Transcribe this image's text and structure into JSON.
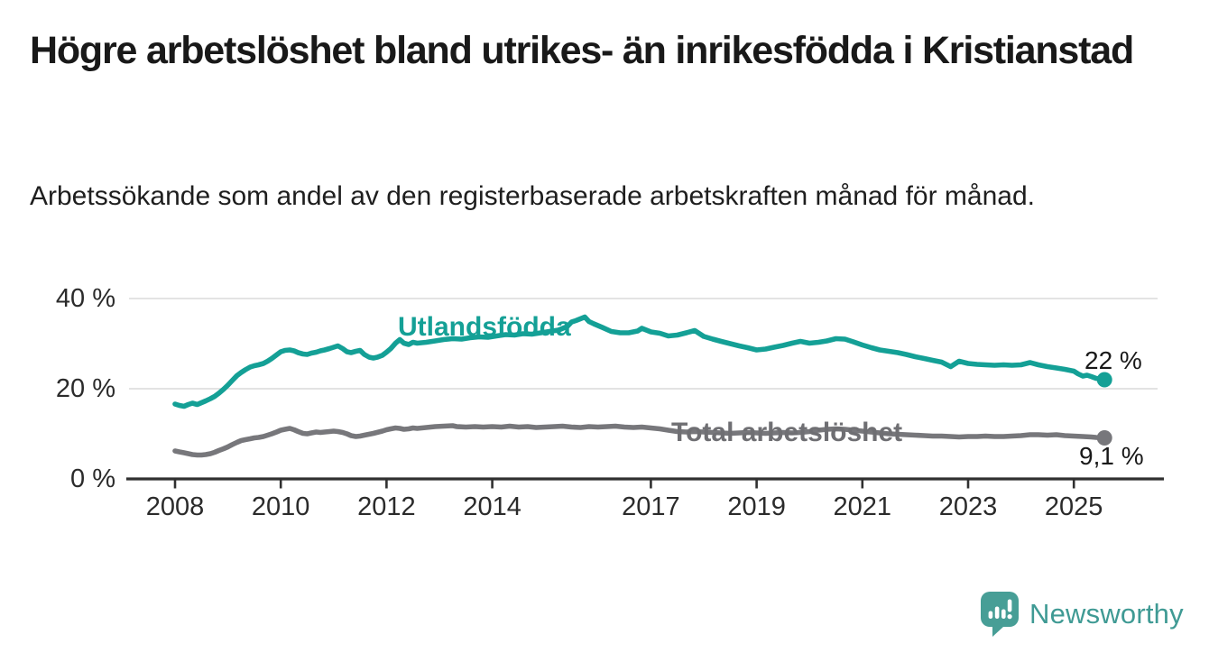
{
  "header": {
    "title": "Högre arbetslöshet bland utrikes- än inrikesfödda i Kristianstad",
    "subtitle": "Arbetssökande som andel av den registerbaserade arbetskraften månad för månad."
  },
  "branding": {
    "logo_text": "Newsworthy",
    "logo_icon": "newsworthy-speech-bubble-bar-chart-icon",
    "logo_color": "#479e96"
  },
  "chart_data": {
    "type": "line",
    "title": "Högre arbetslöshet bland utrikes- än inrikesfödda i Kristianstad",
    "subtitle": "Arbetssökande som andel av den registerbaserade arbetskraften månad för månad.",
    "xlabel": "",
    "ylabel": "",
    "unit": "%",
    "ylim": [
      0,
      40
    ],
    "grid": "horizontal",
    "legend_position": "inline-labels",
    "y_ticks": [
      {
        "value": 0,
        "label": "0 %"
      },
      {
        "value": 20,
        "label": "20 %"
      },
      {
        "value": 40,
        "label": "40 %"
      }
    ],
    "x_ticks": [
      {
        "year": 2008,
        "label": "2008"
      },
      {
        "year": 2010,
        "label": "2010"
      },
      {
        "year": 2012,
        "label": "2012"
      },
      {
        "year": 2014,
        "label": "2014"
      },
      {
        "year": 2017,
        "label": "2017"
      },
      {
        "year": 2019,
        "label": "2019"
      },
      {
        "year": 2021,
        "label": "2021"
      },
      {
        "year": 2023,
        "label": "2023"
      },
      {
        "year": 2025,
        "label": "2025"
      }
    ],
    "series": [
      {
        "name": "Utlandsfödda",
        "color": "#14a096",
        "end_label": "22 %",
        "end_value": 22,
        "points": [
          [
            2008.0,
            16.6
          ],
          [
            2008.08,
            16.3
          ],
          [
            2008.17,
            16.1
          ],
          [
            2008.25,
            16.5
          ],
          [
            2008.33,
            16.8
          ],
          [
            2008.42,
            16.5
          ],
          [
            2008.5,
            16.9
          ],
          [
            2008.58,
            17.3
          ],
          [
            2008.67,
            17.8
          ],
          [
            2008.75,
            18.3
          ],
          [
            2008.83,
            19.0
          ],
          [
            2008.92,
            19.9
          ],
          [
            2009.0,
            20.8
          ],
          [
            2009.08,
            21.8
          ],
          [
            2009.17,
            22.9
          ],
          [
            2009.25,
            23.6
          ],
          [
            2009.33,
            24.2
          ],
          [
            2009.42,
            24.8
          ],
          [
            2009.5,
            25.1
          ],
          [
            2009.58,
            25.3
          ],
          [
            2009.67,
            25.6
          ],
          [
            2009.75,
            26.1
          ],
          [
            2009.83,
            26.7
          ],
          [
            2009.92,
            27.5
          ],
          [
            2010.0,
            28.2
          ],
          [
            2010.08,
            28.5
          ],
          [
            2010.17,
            28.6
          ],
          [
            2010.25,
            28.4
          ],
          [
            2010.33,
            28.0
          ],
          [
            2010.42,
            27.7
          ],
          [
            2010.5,
            27.6
          ],
          [
            2010.58,
            27.9
          ],
          [
            2010.67,
            28.1
          ],
          [
            2010.75,
            28.4
          ],
          [
            2010.83,
            28.6
          ],
          [
            2010.92,
            28.9
          ],
          [
            2011.0,
            29.2
          ],
          [
            2011.08,
            29.5
          ],
          [
            2011.17,
            28.9
          ],
          [
            2011.25,
            28.2
          ],
          [
            2011.33,
            28.0
          ],
          [
            2011.42,
            28.3
          ],
          [
            2011.5,
            28.5
          ],
          [
            2011.58,
            27.6
          ],
          [
            2011.67,
            27.0
          ],
          [
            2011.75,
            26.8
          ],
          [
            2011.83,
            27.0
          ],
          [
            2011.92,
            27.4
          ],
          [
            2012.0,
            28.1
          ],
          [
            2012.08,
            28.9
          ],
          [
            2012.17,
            30.1
          ],
          [
            2012.25,
            30.9
          ],
          [
            2012.33,
            30.1
          ],
          [
            2012.42,
            29.8
          ],
          [
            2012.5,
            30.3
          ],
          [
            2012.58,
            30.1
          ],
          [
            2012.75,
            30.3
          ],
          [
            2012.92,
            30.6
          ],
          [
            2013.08,
            30.9
          ],
          [
            2013.25,
            31.1
          ],
          [
            2013.42,
            31.0
          ],
          [
            2013.58,
            31.3
          ],
          [
            2013.75,
            31.5
          ],
          [
            2013.92,
            31.4
          ],
          [
            2014.08,
            31.7
          ],
          [
            2014.25,
            32.0
          ],
          [
            2014.42,
            31.9
          ],
          [
            2014.58,
            32.2
          ],
          [
            2014.75,
            32.1
          ],
          [
            2014.92,
            32.4
          ],
          [
            2015.08,
            32.7
          ],
          [
            2015.25,
            33.0
          ],
          [
            2015.42,
            33.8
          ],
          [
            2015.5,
            34.8
          ],
          [
            2015.58,
            35.1
          ],
          [
            2015.75,
            35.9
          ],
          [
            2015.83,
            34.9
          ],
          [
            2015.92,
            34.4
          ],
          [
            2016.08,
            33.6
          ],
          [
            2016.25,
            32.7
          ],
          [
            2016.42,
            32.4
          ],
          [
            2016.58,
            32.4
          ],
          [
            2016.75,
            32.8
          ],
          [
            2016.83,
            33.4
          ],
          [
            2017.0,
            32.6
          ],
          [
            2017.17,
            32.3
          ],
          [
            2017.33,
            31.7
          ],
          [
            2017.5,
            31.9
          ],
          [
            2017.67,
            32.4
          ],
          [
            2017.83,
            32.9
          ],
          [
            2018.0,
            31.6
          ],
          [
            2018.17,
            31.0
          ],
          [
            2018.33,
            30.5
          ],
          [
            2018.5,
            30.0
          ],
          [
            2018.67,
            29.5
          ],
          [
            2018.83,
            29.1
          ],
          [
            2019.0,
            28.6
          ],
          [
            2019.17,
            28.8
          ],
          [
            2019.33,
            29.2
          ],
          [
            2019.5,
            29.6
          ],
          [
            2019.67,
            30.1
          ],
          [
            2019.83,
            30.5
          ],
          [
            2020.0,
            30.1
          ],
          [
            2020.17,
            30.3
          ],
          [
            2020.33,
            30.6
          ],
          [
            2020.5,
            31.1
          ],
          [
            2020.67,
            31.0
          ],
          [
            2020.83,
            30.4
          ],
          [
            2021.0,
            29.7
          ],
          [
            2021.17,
            29.1
          ],
          [
            2021.33,
            28.6
          ],
          [
            2021.5,
            28.3
          ],
          [
            2021.67,
            28.0
          ],
          [
            2021.83,
            27.6
          ],
          [
            2022.0,
            27.1
          ],
          [
            2022.17,
            26.7
          ],
          [
            2022.33,
            26.3
          ],
          [
            2022.5,
            25.9
          ],
          [
            2022.67,
            24.9
          ],
          [
            2022.83,
            26.1
          ],
          [
            2023.0,
            25.6
          ],
          [
            2023.17,
            25.4
          ],
          [
            2023.33,
            25.3
          ],
          [
            2023.5,
            25.2
          ],
          [
            2023.67,
            25.3
          ],
          [
            2023.83,
            25.2
          ],
          [
            2024.0,
            25.3
          ],
          [
            2024.17,
            25.8
          ],
          [
            2024.33,
            25.3
          ],
          [
            2024.5,
            24.9
          ],
          [
            2024.67,
            24.6
          ],
          [
            2024.83,
            24.3
          ],
          [
            2025.0,
            23.9
          ],
          [
            2025.08,
            23.3
          ],
          [
            2025.17,
            22.8
          ],
          [
            2025.25,
            23.0
          ],
          [
            2025.33,
            22.7
          ],
          [
            2025.42,
            22.3
          ],
          [
            2025.58,
            22.0
          ]
        ]
      },
      {
        "name": "Total arbetslöshet",
        "color": "#77777b",
        "end_label": "9,1 %",
        "end_value": 9.1,
        "points": [
          [
            2008.0,
            6.2
          ],
          [
            2008.08,
            6.0
          ],
          [
            2008.17,
            5.8
          ],
          [
            2008.25,
            5.6
          ],
          [
            2008.33,
            5.4
          ],
          [
            2008.42,
            5.3
          ],
          [
            2008.5,
            5.3
          ],
          [
            2008.58,
            5.4
          ],
          [
            2008.67,
            5.6
          ],
          [
            2008.75,
            5.9
          ],
          [
            2008.83,
            6.3
          ],
          [
            2008.92,
            6.7
          ],
          [
            2009.0,
            7.1
          ],
          [
            2009.08,
            7.6
          ],
          [
            2009.17,
            8.1
          ],
          [
            2009.25,
            8.5
          ],
          [
            2009.33,
            8.7
          ],
          [
            2009.42,
            8.9
          ],
          [
            2009.5,
            9.1
          ],
          [
            2009.58,
            9.2
          ],
          [
            2009.67,
            9.4
          ],
          [
            2009.75,
            9.7
          ],
          [
            2009.83,
            10.0
          ],
          [
            2009.92,
            10.4
          ],
          [
            2010.0,
            10.8
          ],
          [
            2010.08,
            11.0
          ],
          [
            2010.17,
            11.2
          ],
          [
            2010.25,
            10.9
          ],
          [
            2010.33,
            10.5
          ],
          [
            2010.42,
            10.1
          ],
          [
            2010.5,
            10.0
          ],
          [
            2010.58,
            10.2
          ],
          [
            2010.67,
            10.4
          ],
          [
            2010.75,
            10.3
          ],
          [
            2010.83,
            10.4
          ],
          [
            2010.92,
            10.5
          ],
          [
            2011.0,
            10.6
          ],
          [
            2011.08,
            10.5
          ],
          [
            2011.17,
            10.3
          ],
          [
            2011.25,
            10.0
          ],
          [
            2011.33,
            9.6
          ],
          [
            2011.42,
            9.4
          ],
          [
            2011.5,
            9.5
          ],
          [
            2011.58,
            9.7
          ],
          [
            2011.75,
            10.1
          ],
          [
            2011.92,
            10.6
          ],
          [
            2012.0,
            10.9
          ],
          [
            2012.08,
            11.1
          ],
          [
            2012.17,
            11.3
          ],
          [
            2012.25,
            11.2
          ],
          [
            2012.33,
            11.0
          ],
          [
            2012.42,
            11.1
          ],
          [
            2012.5,
            11.3
          ],
          [
            2012.58,
            11.2
          ],
          [
            2012.75,
            11.4
          ],
          [
            2012.92,
            11.6
          ],
          [
            2013.08,
            11.7
          ],
          [
            2013.25,
            11.8
          ],
          [
            2013.33,
            11.6
          ],
          [
            2013.5,
            11.5
          ],
          [
            2013.67,
            11.6
          ],
          [
            2013.83,
            11.5
          ],
          [
            2014.0,
            11.6
          ],
          [
            2014.17,
            11.5
          ],
          [
            2014.33,
            11.7
          ],
          [
            2014.5,
            11.5
          ],
          [
            2014.67,
            11.6
          ],
          [
            2014.83,
            11.4
          ],
          [
            2015.0,
            11.5
          ],
          [
            2015.17,
            11.6
          ],
          [
            2015.33,
            11.7
          ],
          [
            2015.5,
            11.5
          ],
          [
            2015.67,
            11.4
          ],
          [
            2015.83,
            11.6
          ],
          [
            2016.0,
            11.5
          ],
          [
            2016.17,
            11.6
          ],
          [
            2016.33,
            11.7
          ],
          [
            2016.5,
            11.5
          ],
          [
            2016.67,
            11.4
          ],
          [
            2016.83,
            11.5
          ],
          [
            2017.0,
            11.3
          ],
          [
            2017.17,
            11.1
          ],
          [
            2017.33,
            10.8
          ],
          [
            2017.5,
            10.5
          ],
          [
            2017.67,
            10.4
          ],
          [
            2017.83,
            10.5
          ],
          [
            2018.0,
            10.4
          ],
          [
            2018.17,
            10.3
          ],
          [
            2018.33,
            10.2
          ],
          [
            2018.5,
            10.1
          ],
          [
            2018.67,
            10.2
          ],
          [
            2018.83,
            10.3
          ],
          [
            2019.0,
            10.2
          ],
          [
            2019.17,
            10.1
          ],
          [
            2019.33,
            10.2
          ],
          [
            2019.5,
            10.3
          ],
          [
            2019.67,
            10.2
          ],
          [
            2019.83,
            10.3
          ],
          [
            2020.0,
            10.5
          ],
          [
            2020.17,
            10.8
          ],
          [
            2020.33,
            11.0
          ],
          [
            2020.5,
            11.1
          ],
          [
            2020.67,
            11.0
          ],
          [
            2020.83,
            10.8
          ],
          [
            2021.0,
            10.6
          ],
          [
            2021.17,
            10.4
          ],
          [
            2021.33,
            10.2
          ],
          [
            2021.5,
            10.0
          ],
          [
            2021.67,
            9.9
          ],
          [
            2021.83,
            9.8
          ],
          [
            2022.0,
            9.7
          ],
          [
            2022.17,
            9.6
          ],
          [
            2022.33,
            9.5
          ],
          [
            2022.5,
            9.5
          ],
          [
            2022.67,
            9.4
          ],
          [
            2022.83,
            9.3
          ],
          [
            2023.0,
            9.4
          ],
          [
            2023.17,
            9.4
          ],
          [
            2023.33,
            9.5
          ],
          [
            2023.5,
            9.4
          ],
          [
            2023.67,
            9.4
          ],
          [
            2023.83,
            9.5
          ],
          [
            2024.0,
            9.6
          ],
          [
            2024.17,
            9.8
          ],
          [
            2024.33,
            9.8
          ],
          [
            2024.5,
            9.7
          ],
          [
            2024.67,
            9.8
          ],
          [
            2024.83,
            9.6
          ],
          [
            2025.0,
            9.5
          ],
          [
            2025.17,
            9.4
          ],
          [
            2025.33,
            9.3
          ],
          [
            2025.42,
            9.2
          ],
          [
            2025.58,
            9.1
          ]
        ]
      }
    ]
  }
}
